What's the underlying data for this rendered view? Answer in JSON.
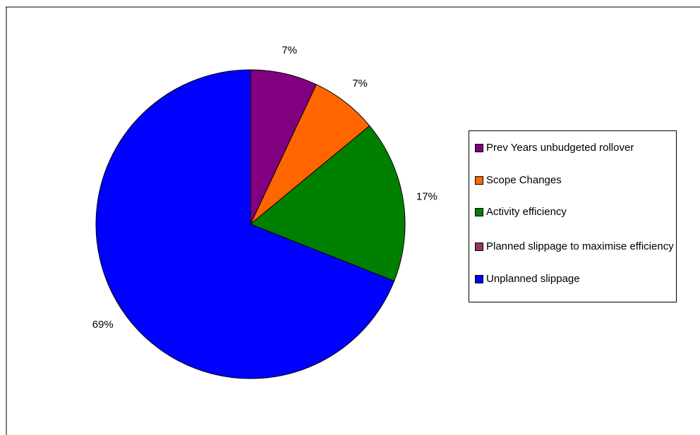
{
  "chart_data": {
    "type": "pie",
    "title": "",
    "start_angle_deg": 90,
    "direction": "clockwise",
    "slices": [
      {
        "label": "Prev Years unbudgeted rollover",
        "value": 7,
        "data_label": "7%",
        "color": "#800080"
      },
      {
        "label": "Scope Changes",
        "value": 7,
        "data_label": "7%",
        "color": "#ff6600"
      },
      {
        "label": "Activity efficiency",
        "value": 17,
        "data_label": "17%",
        "color": "#008000"
      },
      {
        "label": "Planned slippage to maximise efficiency",
        "value": 0,
        "data_label": "",
        "color": "#993366"
      },
      {
        "label": "Unplanned slippage",
        "value": 69,
        "data_label": "69%",
        "color": "#0000ff"
      }
    ],
    "legend_position": "right"
  },
  "legend": {
    "items": [
      {
        "label": "Prev Years unbudgeted rollover",
        "color": "#800080"
      },
      {
        "label": "Scope Changes",
        "color": "#ff6600"
      },
      {
        "label": "Activity efficiency",
        "color": "#008000"
      },
      {
        "label": "Planned slippage to maximise efficiency",
        "color": "#993366"
      },
      {
        "label": "Unplanned slippage",
        "color": "#0000ff"
      }
    ]
  }
}
